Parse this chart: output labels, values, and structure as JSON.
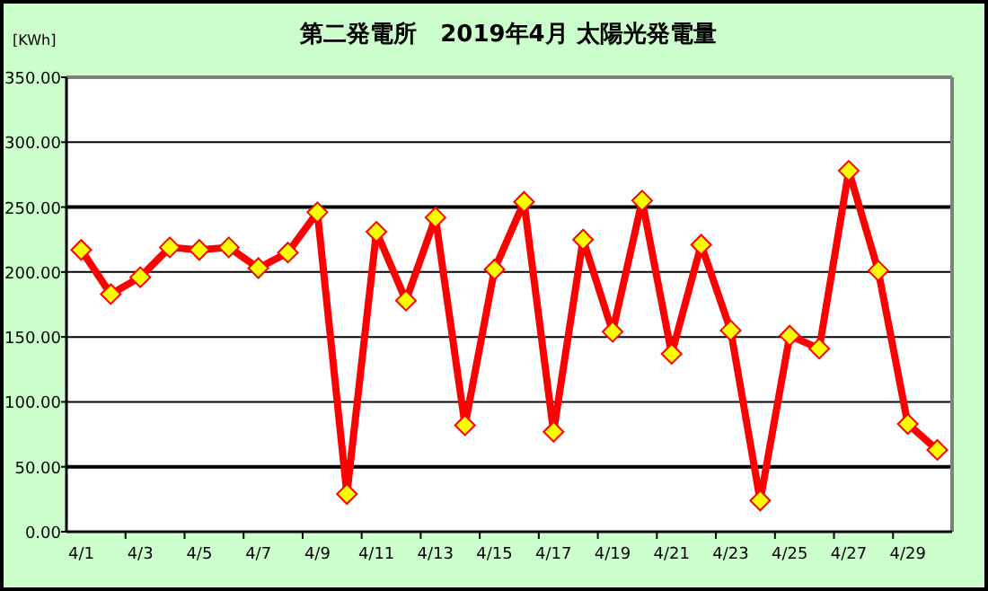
{
  "chart_data": {
    "type": "line",
    "title": "第二発電所　2019年4月 太陽光発電量",
    "ylabel": "[KWh]",
    "categories": [
      "4/1",
      null,
      "4/3",
      null,
      "4/5",
      null,
      "4/7",
      null,
      "4/9",
      null,
      "4/11",
      null,
      "4/13",
      null,
      "4/15",
      null,
      "4/17",
      null,
      "4/19",
      null,
      "4/21",
      null,
      "4/23",
      null,
      "4/25",
      null,
      "4/27",
      null,
      "4/29",
      null
    ],
    "series": [
      {
        "color": "#ff0000",
        "values": [
          217,
          183,
          196,
          219,
          217,
          219,
          203,
          215,
          246,
          29,
          231,
          178,
          242,
          82,
          202,
          254,
          77,
          225,
          154,
          255,
          137,
          221,
          155,
          24,
          151,
          141,
          278,
          201,
          83,
          63
        ]
      }
    ],
    "ylim": [
      0,
      350
    ],
    "yticks": [
      {
        "value": 0,
        "label": "0.00"
      },
      {
        "value": 50,
        "label": "50.00"
      },
      {
        "value": 100,
        "label": "100.00"
      },
      {
        "value": 150,
        "label": "150.00"
      },
      {
        "value": 200,
        "label": "200.00"
      },
      {
        "value": 250,
        "label": "250.00"
      },
      {
        "value": 300,
        "label": "300.00"
      },
      {
        "value": 350,
        "label": "350.00"
      }
    ],
    "grid": "y",
    "marker": "diamond",
    "line_style": "solid"
  }
}
